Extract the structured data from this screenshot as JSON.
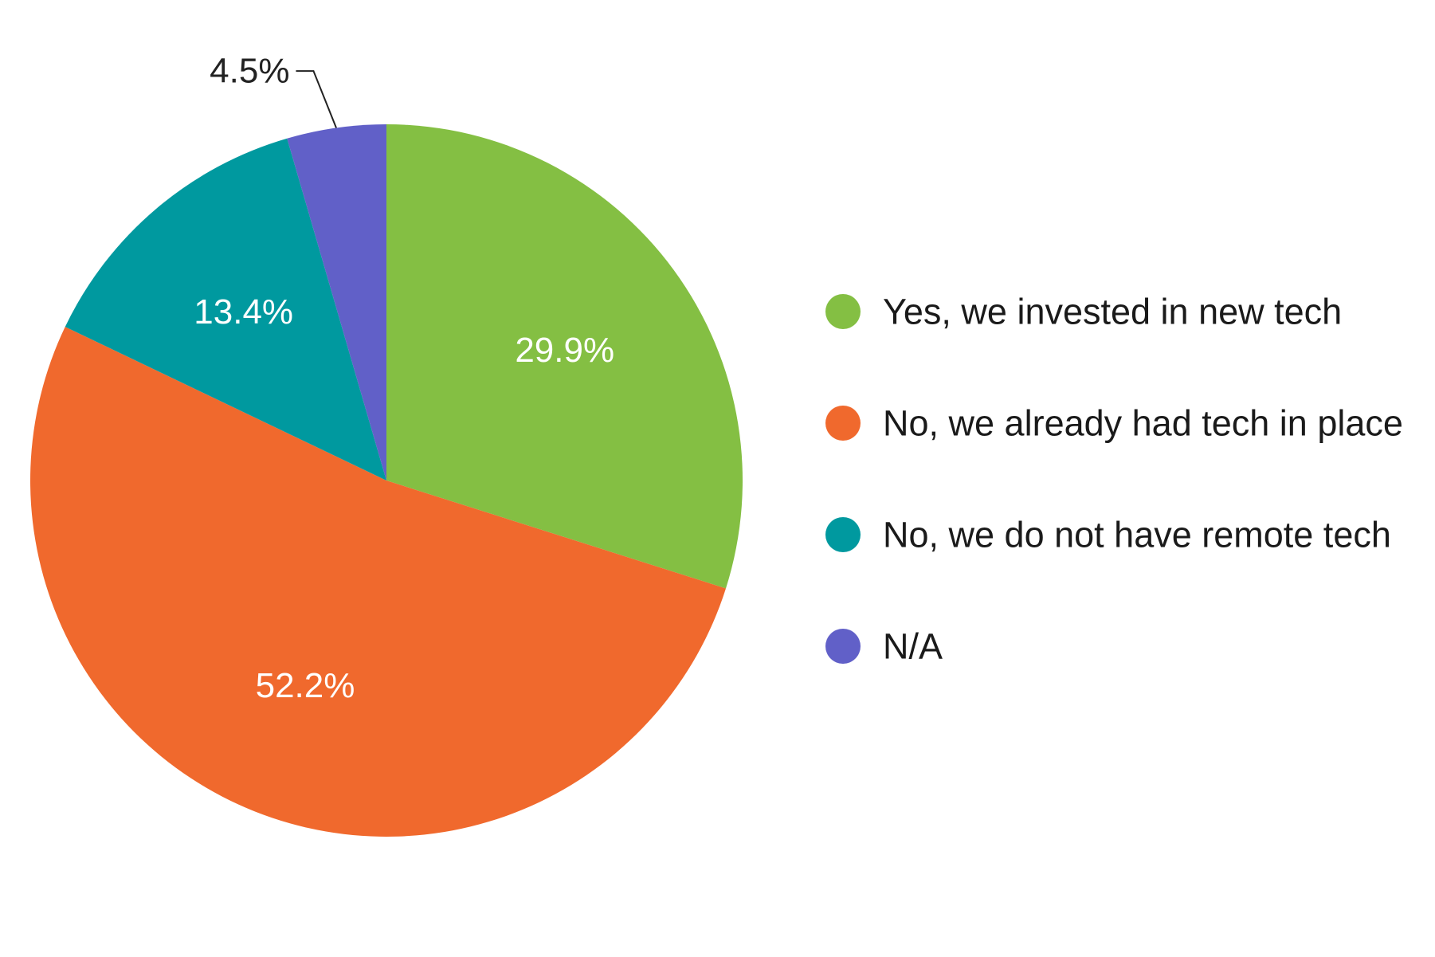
{
  "chart_data": {
    "type": "pie",
    "start_angle_deg": 0,
    "direction": "clockwise",
    "slices": [
      {
        "label": "Yes, we invested in new tech",
        "value": 29.9,
        "value_label": "29.9%",
        "color": "#84bf43",
        "label_color": "#ffffff"
      },
      {
        "label": "No, we already had tech in place",
        "value": 52.2,
        "value_label": "52.2%",
        "color": "#f0692d",
        "label_color": "#ffffff"
      },
      {
        "label": "No, we do not have remote tech",
        "value": 13.4,
        "value_label": "13.4%",
        "color": "#00999f",
        "label_color": "#ffffff"
      },
      {
        "label": "N/A",
        "value": 4.5,
        "value_label": "4.5%",
        "color": "#6160c8",
        "label_color": "#222222",
        "label_outside": true
      }
    ],
    "legend": {
      "position": "right",
      "items": [
        {
          "label": "Yes, we invested in new tech",
          "color": "#84bf43"
        },
        {
          "label": "No, we already had tech in place",
          "color": "#f0692d"
        },
        {
          "label": "No, we do not have remote tech",
          "color": "#00999f"
        },
        {
          "label": "N/A",
          "color": "#6160c8"
        }
      ]
    }
  }
}
